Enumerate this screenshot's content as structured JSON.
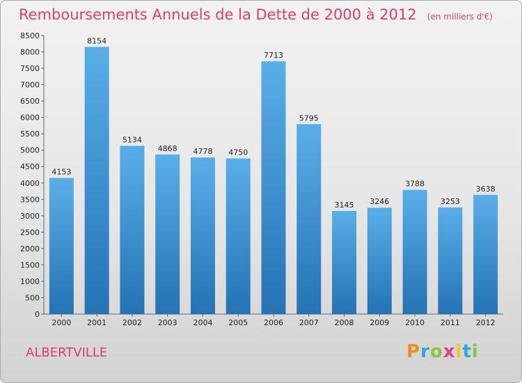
{
  "chart_data": {
    "type": "bar",
    "title": "Remboursements Annuels de la Dette de 2000 à 2012",
    "subtitle": "(en milliers d'€)",
    "categories": [
      "2000",
      "2001",
      "2002",
      "2003",
      "2004",
      "2005",
      "2006",
      "2007",
      "2008",
      "2009",
      "2010",
      "2011",
      "2012"
    ],
    "values": [
      4153,
      8154,
      5134,
      4868,
      4778,
      4750,
      7713,
      5795,
      3145,
      3246,
      3788,
      3253,
      3638
    ],
    "ylim": [
      0,
      8500
    ],
    "yticks": [
      0,
      500,
      1000,
      1500,
      2000,
      2500,
      3000,
      3500,
      4000,
      4500,
      5000,
      5500,
      6000,
      6500,
      7000,
      7500,
      8000,
      8500
    ],
    "xlabel": "",
    "ylabel": "",
    "grid": false,
    "colors": {
      "bar_top": "#5aaee8",
      "bar_bottom": "#2473b5"
    }
  },
  "footer": {
    "city": "ALBERTVILLE",
    "logo_letters": [
      "P",
      "r",
      "o",
      "x",
      "i",
      "t",
      "i"
    ]
  }
}
